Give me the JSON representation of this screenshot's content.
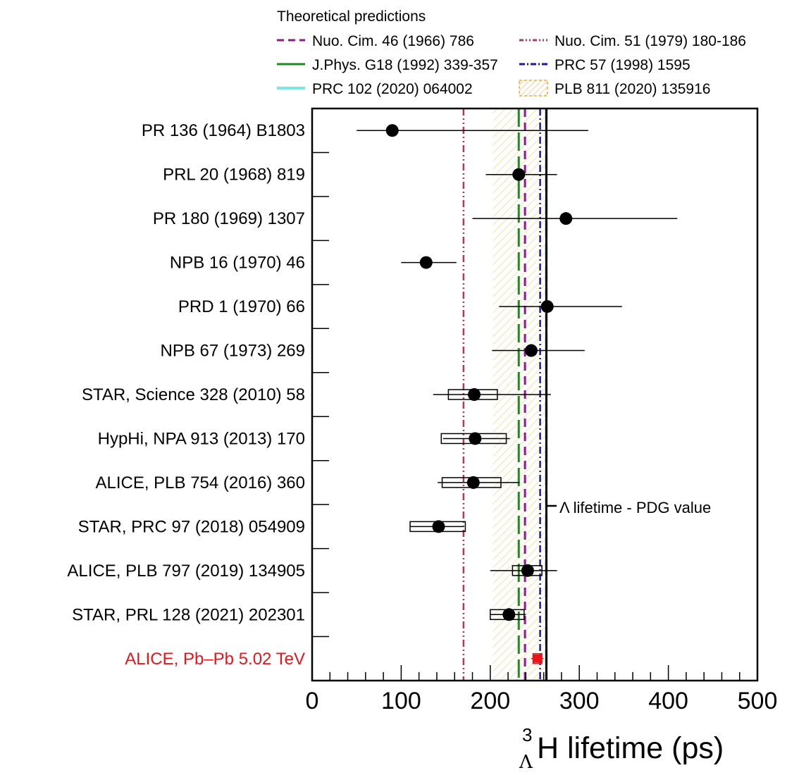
{
  "chart_data": {
    "type": "scatter",
    "orientation": "horizontal",
    "xlim": [
      0,
      500
    ],
    "x_ticks": [
      "0",
      "100",
      "200",
      "300",
      "400",
      "500"
    ],
    "xlabel": {
      "superscript": "3",
      "subscript": "Λ",
      "main": "H lifetime (ps)"
    },
    "legend": {
      "title": "Theoretical predictions",
      "placement": "top",
      "entries": [
        {
          "label": "Nuo. Cim. 46 (1966) 786",
          "style": "dashed",
          "color": "#8b1a8b"
        },
        {
          "label": "Nuo. Cim. 51 (1979) 180-186",
          "style": "dash-dot-dot",
          "color": "#b03a5e"
        },
        {
          "label": "J.Phys. G18 (1992) 339-357",
          "style": "long-dash",
          "color": "#1c8c1c"
        },
        {
          "label": "PRC 57 (1998) 1595",
          "style": "dash-dot",
          "color": "#1a1a9e"
        },
        {
          "label": "PRC 102 (2020) 064002",
          "style": "solid-thick",
          "color": "#7fe6e6"
        },
        {
          "label": "PLB 811 (2020) 135916",
          "style": "hatched-band",
          "color": "#f2a53a"
        }
      ]
    },
    "theory_values": {
      "nuo_cim_46": 239,
      "nuo_cim_51": 170,
      "jphys_g18": 232,
      "prc_57": 256,
      "prc_102": 263,
      "plb_811_band": [
        203,
        263
      ]
    },
    "pdg": {
      "value": 263,
      "label": "Λ lifetime - PDG value"
    },
    "measurements": [
      {
        "label": "PR 136 (1964) B1803",
        "value": 90,
        "stat": [
          50,
          310
        ],
        "syst": null,
        "color": "#000000"
      },
      {
        "label": "PRL 20 (1968) 819",
        "value": 232,
        "stat": [
          195,
          275
        ],
        "syst": null,
        "color": "#000000"
      },
      {
        "label": "PR 180 (1969) 1307",
        "value": 285,
        "stat": [
          180,
          410
        ],
        "syst": null,
        "color": "#000000"
      },
      {
        "label": "NPB 16 (1970) 46",
        "value": 128,
        "stat": [
          100,
          162
        ],
        "syst": null,
        "color": "#000000"
      },
      {
        "label": "PRD 1 (1970) 66",
        "value": 264,
        "stat": [
          210,
          348
        ],
        "syst": null,
        "color": "#000000"
      },
      {
        "label": "NPB 67 (1973) 269",
        "value": 246,
        "stat": [
          202,
          306
        ],
        "syst": null,
        "color": "#000000"
      },
      {
        "label": "STAR, Science 328 (2010) 58",
        "value": 182,
        "stat": [
          136,
          268
        ],
        "syst": [
          153,
          208
        ],
        "color": "#000000"
      },
      {
        "label": "HypHi, NPA 913 (2013) 170",
        "value": 183,
        "stat": [
          147,
          222
        ],
        "syst": [
          145,
          218
        ],
        "color": "#000000"
      },
      {
        "label": "ALICE, PLB 754 (2016) 360",
        "value": 181,
        "stat": [
          141,
          233
        ],
        "syst": [
          146,
          212
        ],
        "color": "#000000"
      },
      {
        "label": "STAR, PRC 97 (2018) 054909",
        "value": 142,
        "stat": [
          110,
          170
        ],
        "syst": [
          110,
          172
        ],
        "color": "#000000"
      },
      {
        "label": "ALICE, PLB 797 (2019) 134905",
        "value": 242,
        "stat": [
          200,
          275
        ],
        "syst": [
          225,
          258
        ],
        "color": "#000000"
      },
      {
        "label": "STAR, PRL 128 (2021) 202301",
        "value": 221,
        "stat": [
          200,
          240
        ],
        "syst": [
          200,
          238
        ],
        "color": "#000000"
      },
      {
        "label": "ALICE, Pb–Pb 5.02 TeV",
        "value": 253,
        "stat": [
          246,
          260
        ],
        "syst": [
          248,
          258
        ],
        "color": "#e8141a"
      }
    ]
  }
}
